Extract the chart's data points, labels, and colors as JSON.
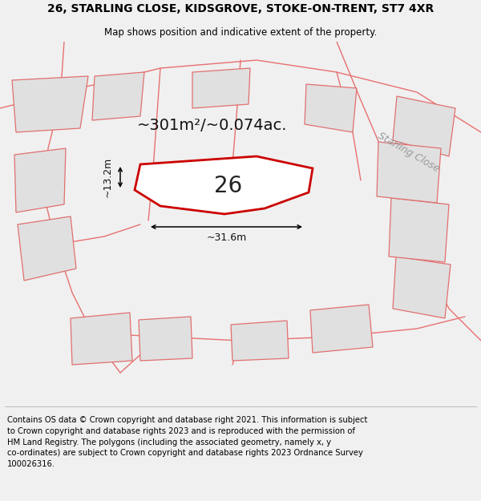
{
  "title": "26, STARLING CLOSE, KIDSGROVE, STOKE-ON-TRENT, ST7 4XR",
  "subtitle": "Map shows position and indicative extent of the property.",
  "footer_lines": [
    "Contains OS data © Crown copyright and database right 2021. This information is subject",
    "to Crown copyright and database rights 2023 and is reproduced with the permission of",
    "HM Land Registry. The polygons (including the associated geometry, namely x, y",
    "co-ordinates) are subject to Crown copyright and database rights 2023 Ordnance Survey",
    "100026316."
  ],
  "area_label": "~301m²/~0.074ac.",
  "plot_number": "26",
  "dim_width": "~31.6m",
  "dim_height": "~13.2m",
  "road_label": "Starling Close",
  "bg_color": "#f0f0f0",
  "map_bg": "#ffffff",
  "plot_fill": "#ffffff",
  "plot_edge": "#cc0000",
  "road_color": "#e87070",
  "other_fill": "#e0e0e0",
  "other_edge": "#e07070",
  "title_fontsize": 10,
  "subtitle_fontsize": 8.5,
  "footer_fontsize": 7.2,
  "area_fontsize": 14,
  "number_fontsize": 20,
  "dim_fontsize": 9
}
